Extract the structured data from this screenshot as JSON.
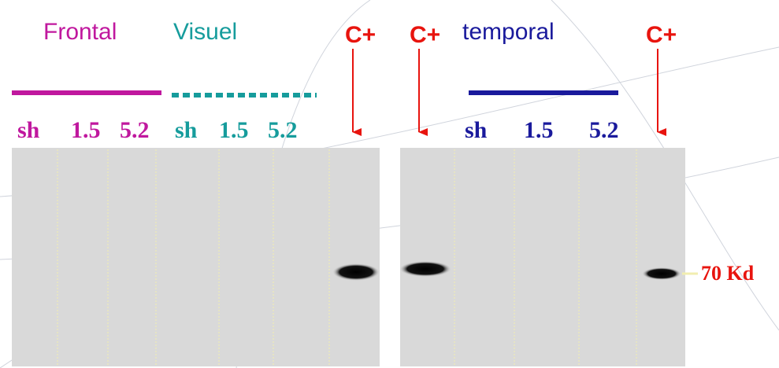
{
  "headers": {
    "frontal": "Frontal",
    "visuel": "Visuel",
    "temporal": "temporal"
  },
  "controls": [
    "C+",
    "C+",
    "C+"
  ],
  "lanes": {
    "frontal": [
      "sh",
      "1.5",
      "5.2"
    ],
    "visuel": [
      "sh",
      "1.5",
      "5.2"
    ],
    "temporal": [
      "sh",
      "1.5",
      "5.2"
    ]
  },
  "marker": "70 Kd"
}
